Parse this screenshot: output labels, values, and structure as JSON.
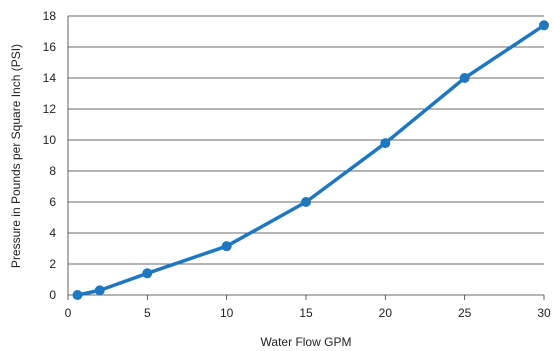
{
  "chart_data": {
    "type": "line",
    "title": "",
    "xlabel": "Water Flow GPM",
    "ylabel": "Pressure in Pounds per Square Inch (PSI)",
    "xlim": [
      0,
      30
    ],
    "ylim": [
      0,
      18
    ],
    "xticks": [
      0,
      5,
      10,
      15,
      20,
      25,
      30
    ],
    "yticks": [
      0,
      2,
      4,
      6,
      8,
      10,
      12,
      14,
      16,
      18
    ],
    "grid": "horizontal",
    "legend": "none",
    "color": "#1f77c0",
    "series": [
      {
        "x": [
          0.6,
          2,
          5,
          10,
          15,
          20,
          25,
          30
        ],
        "values": [
          0,
          0.3,
          1.4,
          3.15,
          6,
          9.8,
          14,
          17.4
        ]
      }
    ]
  }
}
